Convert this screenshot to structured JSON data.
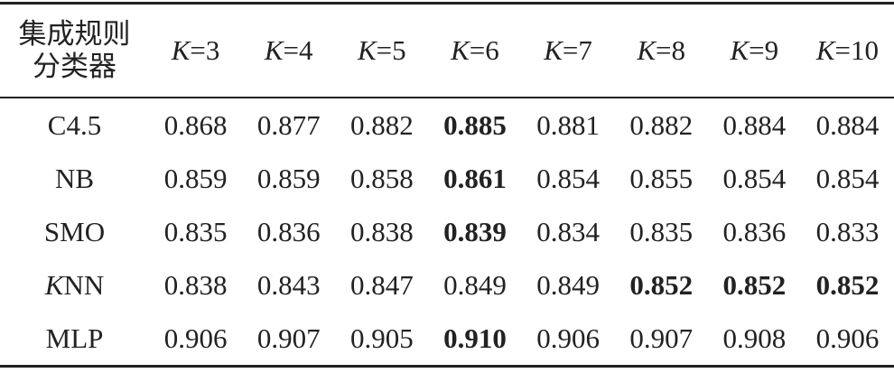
{
  "table": {
    "corner": [
      "集成规则",
      "分类器"
    ],
    "columns": [
      {
        "symbol": "K",
        "text": "=3"
      },
      {
        "symbol": "K",
        "text": "=4"
      },
      {
        "symbol": "K",
        "text": "=5"
      },
      {
        "symbol": "K",
        "text": "=6"
      },
      {
        "symbol": "K",
        "text": "=7"
      },
      {
        "symbol": "K",
        "text": "=8"
      },
      {
        "symbol": "K",
        "text": "=9"
      },
      {
        "symbol": "K",
        "text": "=10"
      }
    ],
    "rows": [
      {
        "label": "C4.5",
        "values": [
          "0.868",
          "0.877",
          "0.882",
          "0.885",
          "0.881",
          "0.882",
          "0.884",
          "0.884"
        ],
        "bold": [
          3
        ]
      },
      {
        "label": "NB",
        "values": [
          "0.859",
          "0.859",
          "0.858",
          "0.861",
          "0.854",
          "0.855",
          "0.854",
          "0.854"
        ],
        "bold": [
          3
        ]
      },
      {
        "label": "SMO",
        "values": [
          "0.835",
          "0.836",
          "0.838",
          "0.839",
          "0.834",
          "0.835",
          "0.836",
          "0.833"
        ],
        "bold": [
          3
        ]
      },
      {
        "label": {
          "symbol": "K",
          "text": "NN"
        },
        "values": [
          "0.838",
          "0.843",
          "0.847",
          "0.849",
          "0.849",
          "0.852",
          "0.852",
          "0.852"
        ],
        "bold": [
          5,
          6,
          7
        ]
      },
      {
        "label": "MLP",
        "values": [
          "0.906",
          "0.907",
          "0.905",
          "0.910",
          "0.906",
          "0.907",
          "0.908",
          "0.906"
        ],
        "bold": [
          3
        ]
      }
    ]
  }
}
